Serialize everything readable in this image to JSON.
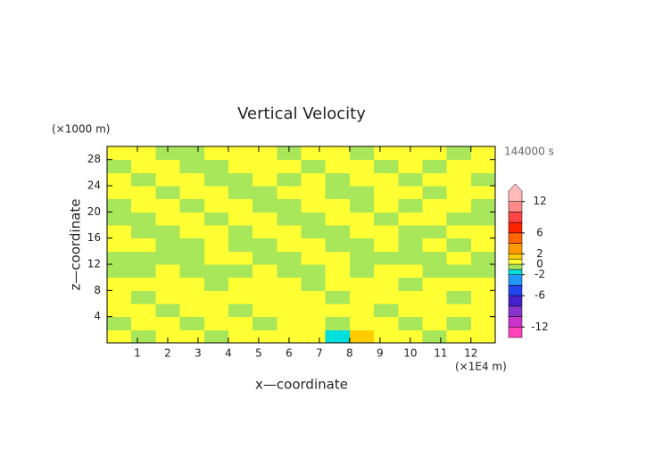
{
  "chart_data": {
    "type": "contour",
    "title": "Vertical Velocity",
    "y_unit": "(×1000 m)",
    "time_label": "144000 s",
    "x_unit": "(×1E4 m)",
    "x_label": "x—coordinate",
    "y_label": "z—coordinate",
    "xlim": [
      0,
      12.8
    ],
    "xticks": [
      1,
      2,
      3,
      4,
      5,
      6,
      7,
      8,
      9,
      10,
      11,
      12
    ],
    "ylim": [
      0,
      30
    ],
    "yticks": [
      4,
      8,
      12,
      16,
      20,
      24,
      28
    ],
    "levels": [
      -14,
      -12,
      -10,
      -8,
      -6,
      -4,
      -2,
      -1,
      0,
      1,
      2,
      4,
      6,
      8,
      10,
      12,
      14
    ],
    "level_colors": [
      "#ff44bb",
      "#cc33cc",
      "#8833cc",
      "#4422cc",
      "#2244ee",
      "#2299ff",
      "#00dddd",
      "#a8e65a",
      "#ffff33",
      "#ffcc00",
      "#ff9900",
      "#ff6600",
      "#ff2200",
      "#ff4444",
      "#ff8888",
      "#ffbbbb"
    ],
    "colorbar_ticks": [
      12,
      6,
      2,
      0,
      -2,
      -6,
      -12
    ],
    "z": [
      [
        0.5,
        -0.5,
        0.5,
        0.5,
        -0.5,
        0.5,
        0.5,
        0.5,
        0.5,
        -1.5,
        1.5,
        0.5,
        0.5,
        -0.5,
        0.5,
        0.5
      ],
      [
        -0.5,
        0.5,
        0.5,
        -0.5,
        0.5,
        0.5,
        -0.5,
        0.5,
        0.5,
        -0.5,
        0.5,
        0.5,
        -0.5,
        0.5,
        -0.5,
        0.5
      ],
      [
        0.5,
        0.5,
        -0.5,
        0.5,
        0.5,
        -0.5,
        0.5,
        0.5,
        0.5,
        0.5,
        0.5,
        -0.5,
        0.5,
        0.5,
        0.5,
        0.5
      ],
      [
        0.5,
        -0.5,
        0.5,
        0.5,
        0.5,
        0.5,
        0.5,
        0.5,
        0.5,
        -0.5,
        0.5,
        0.5,
        0.5,
        0.5,
        -0.5,
        0.5
      ],
      [
        0.5,
        0.5,
        0.5,
        0.5,
        -0.5,
        0.5,
        0.5,
        0.5,
        -0.5,
        0.5,
        0.5,
        0.5,
        -0.5,
        0.5,
        0.5,
        0.5
      ],
      [
        -0.5,
        -0.5,
        0.5,
        -0.5,
        -0.5,
        -0.5,
        0.5,
        -0.5,
        -0.5,
        0.5,
        -0.5,
        0.5,
        0.5,
        -0.5,
        -0.5,
        -0.5
      ],
      [
        -0.5,
        -0.5,
        -0.5,
        -0.5,
        0.5,
        0.5,
        -0.5,
        -0.5,
        0.5,
        0.5,
        -0.5,
        -0.5,
        -0.5,
        -0.5,
        0.5,
        -0.5
      ],
      [
        0.5,
        0.5,
        -0.5,
        -0.5,
        0.5,
        -0.5,
        -0.5,
        0.5,
        0.5,
        -0.5,
        -0.5,
        0.5,
        -0.5,
        0.5,
        -0.5,
        0.5
      ],
      [
        0.5,
        -0.5,
        -0.5,
        0.5,
        0.5,
        -0.5,
        0.5,
        0.5,
        -0.5,
        -0.5,
        0.5,
        0.5,
        -0.5,
        -0.5,
        0.5,
        0.5
      ],
      [
        -0.5,
        -0.5,
        0.5,
        0.5,
        -0.5,
        0.5,
        0.5,
        -0.5,
        -0.5,
        0.5,
        0.5,
        -0.5,
        0.5,
        0.5,
        -0.5,
        -0.5
      ],
      [
        -0.5,
        0.5,
        0.5,
        -0.5,
        0.5,
        0.5,
        -0.5,
        -0.5,
        0.5,
        0.5,
        -0.5,
        0.5,
        -0.5,
        0.5,
        0.5,
        -0.5
      ],
      [
        0.5,
        0.5,
        -0.5,
        0.5,
        0.5,
        -0.5,
        -0.5,
        0.5,
        0.5,
        -0.5,
        -0.5,
        0.5,
        0.5,
        -0.5,
        0.5,
        0.5
      ],
      [
        0.5,
        -0.5,
        0.5,
        0.5,
        -0.5,
        -0.5,
        0.5,
        -0.5,
        0.5,
        -0.5,
        0.5,
        0.5,
        -0.5,
        0.5,
        0.5,
        -0.5
      ],
      [
        -0.5,
        0.5,
        0.5,
        -0.5,
        -0.5,
        0.5,
        0.5,
        0.5,
        -0.5,
        0.5,
        0.5,
        -0.5,
        0.5,
        -0.5,
        0.5,
        0.5
      ],
      [
        0.5,
        0.5,
        -0.5,
        -0.5,
        0.5,
        0.5,
        0.5,
        -0.5,
        0.5,
        0.5,
        -0.5,
        0.5,
        0.5,
        0.5,
        -0.5,
        0.5
      ]
    ]
  }
}
